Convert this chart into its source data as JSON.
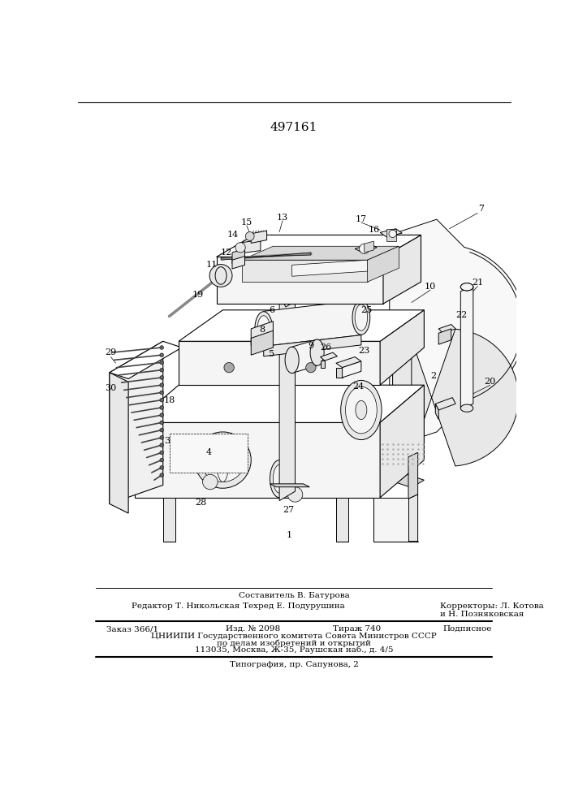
{
  "patent_number": "497161",
  "bg_color": "#ffffff",
  "bottom_section": {
    "compositor_line": "Составитель В. Батурова",
    "editor_text": "Редактор Т. Никольская",
    "techred_text": "Техред Е. Подурушина",
    "correctors_text": "Корректоры: Л. Котова",
    "correctors_line2": "и Н. Позняковская",
    "order_text": "Заказ 366/1",
    "izd_text": "Изд. № 2098",
    "tirazh_text": "Тираж 740",
    "podpisnoe_text": "Подписное",
    "tsniip_line1": "ЦНИИПИ Государственного комитета Совета Министров СССР",
    "tsniip_line2": "по делам изобретений и открытий",
    "tsniip_line3": "113035, Москва, Ж-35, Раушская наб., д. 4/5",
    "tipografia_text": "Типография, пр. Сапунова, 2"
  }
}
